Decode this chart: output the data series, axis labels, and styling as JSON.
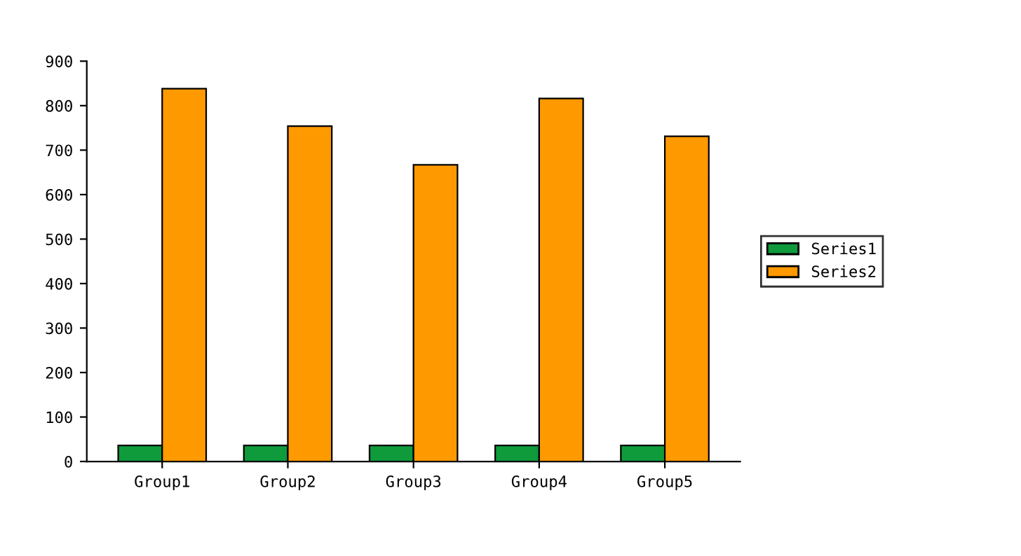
{
  "chart_data": {
    "type": "bar",
    "categories": [
      "Group1",
      "Group2",
      "Group3",
      "Group4",
      "Group5"
    ],
    "series": [
      {
        "name": "Series1",
        "color": "#0f9a3c",
        "values": [
          36,
          36,
          36,
          36,
          36
        ]
      },
      {
        "name": "Series2",
        "color": "#ff9900",
        "values": [
          838,
          754,
          667,
          816,
          731
        ]
      }
    ],
    "ylim": [
      0,
      900
    ],
    "yticks": [
      0,
      100,
      200,
      300,
      400,
      500,
      600,
      700,
      800,
      900
    ],
    "grid": false,
    "legend": "right"
  }
}
